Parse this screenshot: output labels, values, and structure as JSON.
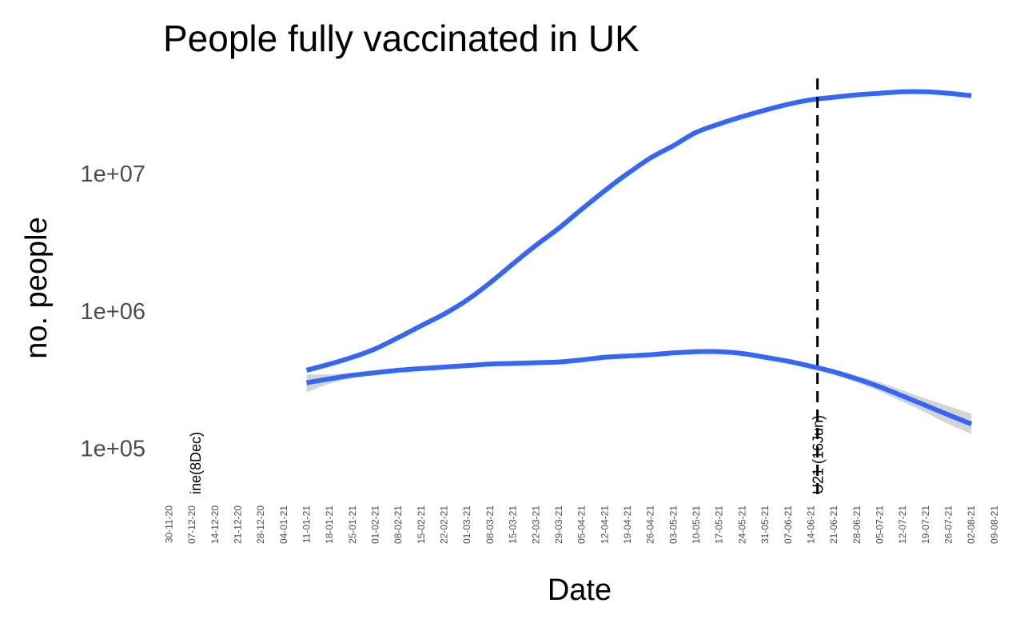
{
  "chart_data": {
    "type": "line",
    "title": "People fully vaccinated in UK",
    "xlabel": "Date",
    "ylabel": "no. people",
    "y_scale": "log10",
    "ylim": [
      45000,
      55000000
    ],
    "y_ticks": [
      {
        "value": 100000,
        "label": "1e+05"
      },
      {
        "value": 1000000,
        "label": "1e+06"
      },
      {
        "value": 10000000,
        "label": "1e+07"
      }
    ],
    "x_ticks": [
      "30-11-20",
      "07-12-20",
      "14-12-20",
      "21-12-20",
      "28-12-20",
      "04-01-21",
      "11-01-21",
      "18-01-21",
      "25-01-21",
      "01-02-21",
      "08-02-21",
      "15-02-21",
      "22-02-21",
      "01-03-21",
      "08-03-21",
      "15-03-21",
      "22-03-21",
      "29-03-21",
      "05-04-21",
      "12-04-21",
      "19-04-21",
      "26-04-21",
      "03-05-21",
      "10-05-21",
      "17-05-21",
      "24-05-21",
      "31-05-21",
      "07-06-21",
      "14-06-21",
      "21-06-21",
      "28-06-21",
      "05-07-21",
      "12-07-21",
      "19-07-21",
      "26-07-21",
      "02-08-21",
      "09-08-21"
    ],
    "x_range": [
      "2020-11-26",
      "2021-08-10"
    ],
    "grid": false,
    "legend": "none",
    "series": [
      {
        "color": "#3366FF",
        "dates": [
          "2021-01-11",
          "2021-01-18",
          "2021-01-25",
          "2021-02-01",
          "2021-02-08",
          "2021-02-15",
          "2021-02-22",
          "2021-03-01",
          "2021-03-08",
          "2021-03-15",
          "2021-03-22",
          "2021-03-29",
          "2021-04-05",
          "2021-04-12",
          "2021-04-19",
          "2021-04-26",
          "2021-05-03",
          "2021-05-10",
          "2021-05-17",
          "2021-05-24",
          "2021-05-31",
          "2021-06-07",
          "2021-06-14",
          "2021-06-21",
          "2021-06-28",
          "2021-07-05",
          "2021-07-12",
          "2021-07-19",
          "2021-07-26",
          "2021-08-02"
        ],
        "values": [
          370000,
          410000,
          460000,
          530000,
          640000,
          780000,
          950000,
          1200000,
          1600000,
          2200000,
          3000000,
          4000000,
          5500000,
          7500000,
          10000000,
          13000000,
          16000000,
          20000000,
          23000000,
          26000000,
          29000000,
          32000000,
          34500000,
          36000000,
          37500000,
          38500000,
          39500000,
          39500000,
          38500000,
          37000000
        ]
      },
      {
        "color": "#3366FF",
        "dates": [
          "2021-01-11",
          "2021-01-18",
          "2021-01-25",
          "2021-02-01",
          "2021-02-08",
          "2021-02-15",
          "2021-02-22",
          "2021-03-01",
          "2021-03-08",
          "2021-03-15",
          "2021-03-22",
          "2021-03-29",
          "2021-04-05",
          "2021-04-12",
          "2021-04-19",
          "2021-04-26",
          "2021-05-03",
          "2021-05-10",
          "2021-05-17",
          "2021-05-24",
          "2021-05-31",
          "2021-06-07",
          "2021-06-14",
          "2021-06-21",
          "2021-06-28",
          "2021-07-05",
          "2021-07-12",
          "2021-07-19",
          "2021-07-26",
          "2021-08-02"
        ],
        "values": [
          300000,
          320000,
          340000,
          355000,
          370000,
          380000,
          390000,
          400000,
          410000,
          415000,
          420000,
          425000,
          440000,
          460000,
          470000,
          480000,
          495000,
          505000,
          505000,
          490000,
          460000,
          430000,
          395000,
          360000,
          320000,
          280000,
          240000,
          205000,
          175000,
          150000
        ],
        "ci_lower": [
          255000,
          295000,
          325000,
          343000,
          358000,
          368000,
          380000,
          392000,
          402000,
          407000,
          412000,
          418000,
          430000,
          448000,
          458000,
          468000,
          482000,
          492000,
          490000,
          473000,
          443000,
          413000,
          378000,
          343000,
          302000,
          260000,
          218000,
          182000,
          150000,
          127000
        ],
        "ci_upper": [
          345000,
          345000,
          355000,
          367000,
          382000,
          392000,
          400000,
          408000,
          418000,
          423000,
          428000,
          433000,
          450000,
          472000,
          482000,
          492000,
          508000,
          518000,
          520000,
          507000,
          477000,
          447000,
          412000,
          377000,
          338000,
          302000,
          264000,
          230000,
          203000,
          178000
        ]
      }
    ],
    "annotations": [
      {
        "date": "2020-12-08",
        "text": "ine(8Dec)",
        "line": false
      },
      {
        "date": "2021-06-16",
        "text": "U21 (16Jun)",
        "line": true,
        "line_style": "dashed"
      }
    ]
  }
}
